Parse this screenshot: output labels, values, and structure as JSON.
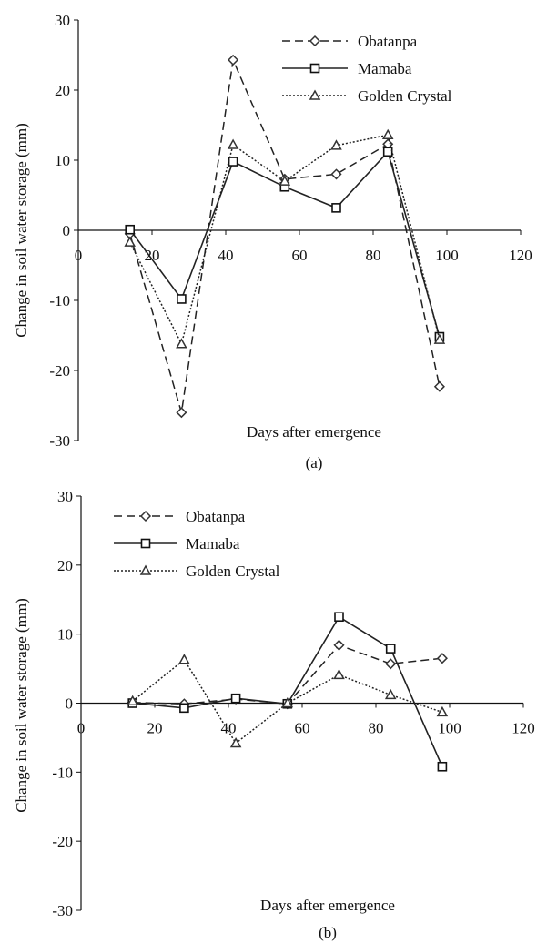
{
  "chart_data": [
    {
      "type": "line",
      "panel_label": "(a)",
      "xlabel": "Days after emergence",
      "ylabel": "Change in soil water storage (mm)",
      "xlim": [
        0,
        120
      ],
      "ylim": [
        -30,
        30
      ],
      "xticks": [
        "0",
        "20",
        "40",
        "60",
        "80",
        "100",
        "120"
      ],
      "yticks": [
        "30",
        "20",
        "10",
        "0",
        "-10",
        "-20",
        "-30"
      ],
      "legend_position": "top-right",
      "x": [
        14,
        28,
        42,
        56,
        70,
        84,
        98
      ],
      "series": [
        {
          "name": "Obatanpa",
          "marker": "diamond",
          "line": "dashed",
          "values": [
            -0.5,
            -26.0,
            24.3,
            7.3,
            8.0,
            12.3,
            -22.3
          ]
        },
        {
          "name": "Mamaba",
          "marker": "square",
          "line": "solid",
          "values": [
            0.1,
            -9.8,
            9.8,
            6.2,
            3.2,
            11.2,
            -15.2
          ]
        },
        {
          "name": "Golden Crystal",
          "marker": "triangle",
          "line": "dotted",
          "values": [
            -1.7,
            -16.2,
            12.2,
            7.0,
            12.1,
            13.6,
            -15.6
          ]
        }
      ]
    },
    {
      "type": "line",
      "panel_label": "(b)",
      "xlabel": "Days after emergence",
      "ylabel": "Change in soil water storage (mm)",
      "xlim": [
        0,
        120
      ],
      "ylim": [
        -30,
        30
      ],
      "xticks": [
        "0",
        "20",
        "40",
        "60",
        "80",
        "100",
        "120"
      ],
      "yticks": [
        "30",
        "20",
        "10",
        "0",
        "-10",
        "-20",
        "-30"
      ],
      "legend_position": "top-left",
      "x": [
        14,
        28,
        42,
        56,
        70,
        84,
        98
      ],
      "series": [
        {
          "name": "Obatanpa",
          "marker": "diamond",
          "line": "dashed",
          "values": [
            0.1,
            -0.1,
            0.6,
            -0.1,
            8.4,
            5.7,
            6.5
          ]
        },
        {
          "name": "Mamaba",
          "marker": "square",
          "line": "solid",
          "values": [
            0.0,
            -0.7,
            0.7,
            -0.1,
            12.5,
            7.9,
            -9.2
          ]
        },
        {
          "name": "Golden Crystal",
          "marker": "triangle",
          "line": "dotted",
          "values": [
            0.3,
            6.3,
            -5.8,
            0.0,
            4.1,
            1.2,
            -1.3
          ]
        }
      ]
    }
  ]
}
